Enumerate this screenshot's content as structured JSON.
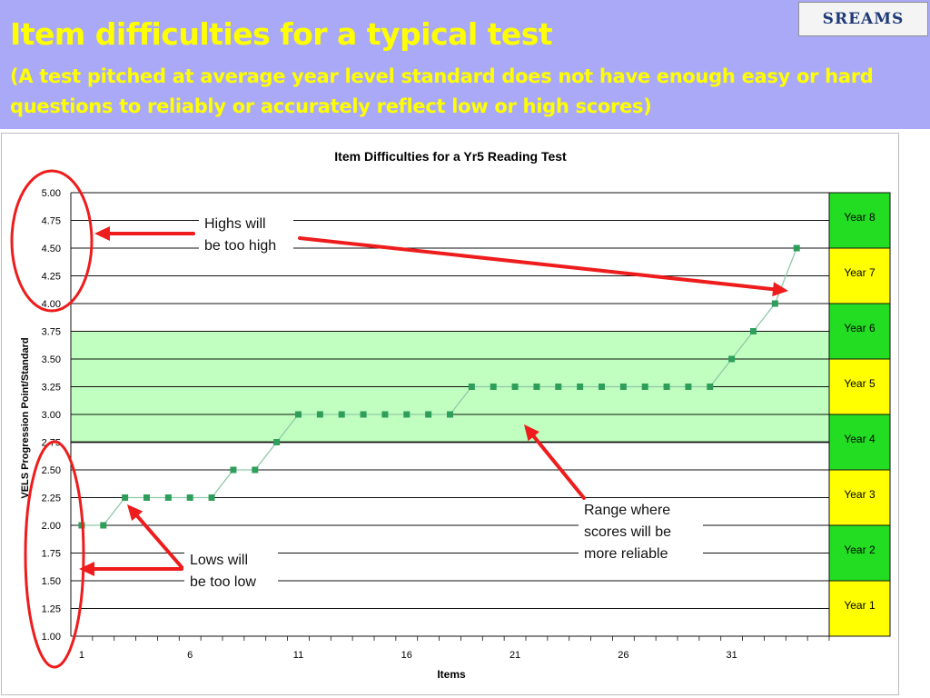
{
  "slide": {
    "title": "Item difficulties for a typical test",
    "subtitle": "(A test pitched at average year level standard does not have enough easy or hard questions to reliably or accurately reflect low or high scores)",
    "logo_text": "SREAMS"
  },
  "colors": {
    "header_bg": "#a9a9f7",
    "title_text": "#ffff00",
    "reliable_band": "#c0ffc0",
    "series_line": "#8fc9a9",
    "series_marker": "#2e9e5b",
    "annotation": "#ee1c1c",
    "year_green": "#22dd22",
    "year_yellow": "#ffff00"
  },
  "chart_data": {
    "type": "line",
    "title": "Item Difficulties  for a Yr5 Reading Test",
    "xlabel": "Items",
    "ylabel": "VELS Progression Point/Standard",
    "ylim": [
      1.0,
      5.0
    ],
    "y_ticks": [
      "1.00",
      "1.25",
      "1.50",
      "1.75",
      "2.00",
      "2.25",
      "2.50",
      "2.75",
      "3.00",
      "3.25",
      "3.50",
      "3.75",
      "4.00",
      "4.25",
      "4.50",
      "4.75",
      "5.00"
    ],
    "xlim": [
      0.5,
      35.5
    ],
    "x_ticks": [
      "1",
      "6",
      "11",
      "16",
      "21",
      "26",
      "31"
    ],
    "grid": true,
    "reliable_range": [
      2.75,
      3.75
    ],
    "series": [
      {
        "x": [
          1,
          2,
          3,
          4,
          5,
          6,
          7,
          8,
          9,
          10,
          11,
          12,
          13,
          14,
          15,
          16,
          17,
          18,
          19,
          20,
          21,
          22,
          23,
          24,
          25,
          26,
          27,
          28,
          29,
          30,
          31,
          32,
          33,
          34
        ],
        "values": [
          2.0,
          2.0,
          2.25,
          2.25,
          2.25,
          2.25,
          2.25,
          2.5,
          2.5,
          2.75,
          3.0,
          3.0,
          3.0,
          3.0,
          3.0,
          3.0,
          3.0,
          3.0,
          3.25,
          3.25,
          3.25,
          3.25,
          3.25,
          3.25,
          3.25,
          3.25,
          3.25,
          3.25,
          3.25,
          3.25,
          3.5,
          3.75,
          4.0,
          4.5
        ]
      }
    ],
    "year_levels": [
      {
        "label": "Year 1",
        "from": 1.0,
        "to": 1.5,
        "color": "yellow"
      },
      {
        "label": "Year 2",
        "from": 1.5,
        "to": 2.0,
        "color": "green"
      },
      {
        "label": "Year 3",
        "from": 2.0,
        "to": 2.5,
        "color": "yellow"
      },
      {
        "label": "Year 4",
        "from": 2.5,
        "to": 3.0,
        "color": "green"
      },
      {
        "label": "Year 5",
        "from": 3.0,
        "to": 3.5,
        "color": "yellow"
      },
      {
        "label": "Year 6",
        "from": 3.5,
        "to": 4.0,
        "color": "green"
      },
      {
        "label": "Year 7",
        "from": 4.0,
        "to": 4.5,
        "color": "yellow"
      },
      {
        "label": "Year 8",
        "from": 4.5,
        "to": 5.0,
        "color": "green"
      }
    ],
    "annotations": {
      "highs": [
        "Highs will",
        "be too high"
      ],
      "lows": [
        "Lows will",
        "be too low"
      ],
      "range": [
        "Range where",
        "scores will be",
        "more reliable"
      ]
    }
  }
}
